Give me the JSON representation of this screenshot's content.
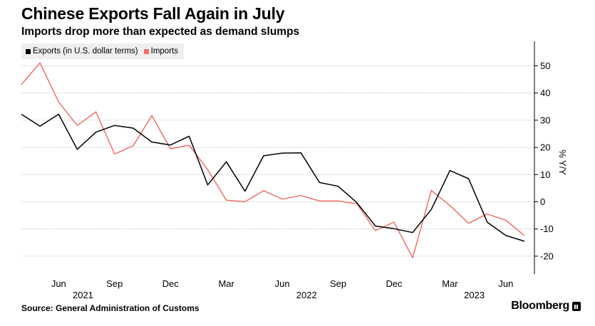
{
  "header": {
    "title": "Chinese Exports Fall Again in July",
    "subtitle": "Imports drop more than expected as demand slumps"
  },
  "footer": {
    "source": "Source: General Administration of Customs",
    "brand": "Bloomberg"
  },
  "colors": {
    "exports": "#000000",
    "imports": "#f27069",
    "grid": "#b5b5b5",
    "axis": "#000000"
  },
  "chart_data": {
    "type": "line",
    "x": [
      "2021-04",
      "2021-05",
      "2021-06",
      "2021-07",
      "2021-08",
      "2021-09",
      "2021-10",
      "2021-11",
      "2021-12",
      "2022-01",
      "2022-02",
      "2022-03",
      "2022-04",
      "2022-05",
      "2022-06",
      "2022-07",
      "2022-08",
      "2022-09",
      "2022-10",
      "2022-11",
      "2022-12",
      "2023-01",
      "2023-02",
      "2023-03",
      "2023-04",
      "2023-05",
      "2023-06",
      "2023-07"
    ],
    "series": [
      {
        "name": "Exports (in U.S. dollar terms)",
        "values": [
          32.2,
          27.8,
          32.2,
          19.3,
          25.6,
          28.1,
          27.1,
          22.0,
          20.9,
          24.1,
          6.2,
          14.7,
          3.9,
          16.9,
          17.9,
          18.0,
          7.1,
          5.7,
          -0.3,
          -8.9,
          -9.9,
          -11.3,
          -2.8,
          11.5,
          8.5,
          -7.5,
          -12.4,
          -14.5
        ]
      },
      {
        "name": "Imports",
        "values": [
          43.1,
          51.1,
          36.7,
          28.1,
          33.1,
          17.6,
          20.6,
          31.7,
          19.5,
          20.8,
          11.8,
          0.6,
          0.0,
          4.1,
          1.0,
          2.3,
          0.3,
          0.3,
          -0.7,
          -10.6,
          -7.5,
          -20.6,
          4.2,
          -1.4,
          -7.9,
          -4.5,
          -6.8,
          -12.4
        ]
      }
    ],
    "ylabel": "% Y/Y",
    "ylim": [
      -25,
      58
    ],
    "yticks": [
      -20,
      -10,
      0,
      10,
      20,
      30,
      40,
      50
    ],
    "ytick_labels": [
      "-20",
      "-10",
      "0",
      "10",
      "20",
      "30",
      "40",
      "50"
    ],
    "xticks": [
      {
        "x": "2021-06",
        "label": "Jun"
      },
      {
        "x": "2021-09",
        "label": "Sep"
      },
      {
        "x": "2021-12",
        "label": "Dec"
      },
      {
        "x": "2022-03",
        "label": "Mar"
      },
      {
        "x": "2022-06",
        "label": "Jun"
      },
      {
        "x": "2022-09",
        "label": "Sep"
      },
      {
        "x": "2022-12",
        "label": "Dec"
      },
      {
        "x": "2023-03",
        "label": "Mar"
      },
      {
        "x": "2023-06",
        "label": "Jun"
      }
    ],
    "year_labels": [
      {
        "x": "2021-07",
        "label": "2021"
      },
      {
        "x": "2022-07",
        "label": "2022"
      },
      {
        "x": "2023-04",
        "label": "2023"
      }
    ],
    "grid": true,
    "legend": "top-left"
  }
}
